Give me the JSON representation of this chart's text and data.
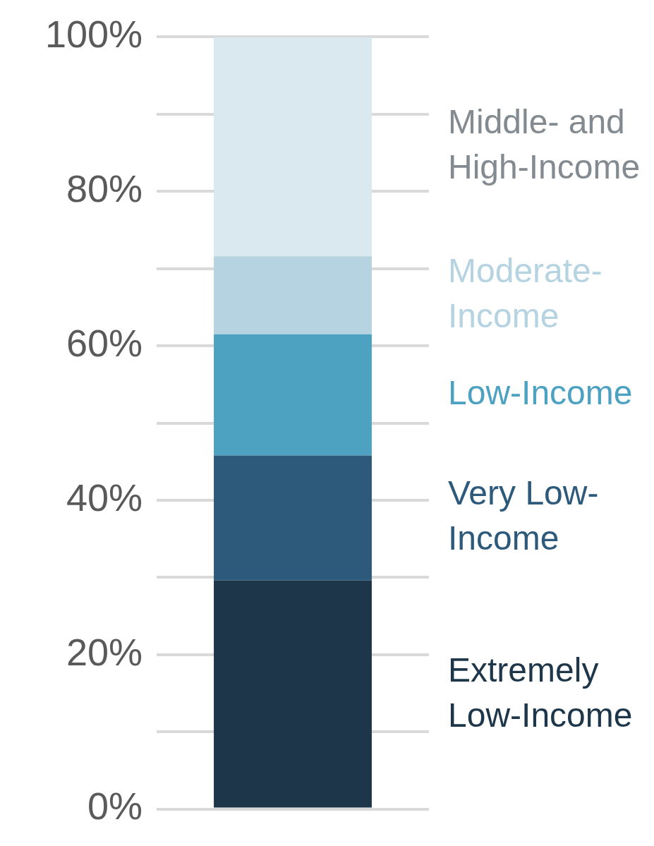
{
  "chart_data": {
    "type": "bar",
    "stacked": true,
    "categories": [
      null
    ],
    "series": [
      {
        "name": "Extremely Low-Income",
        "color": "#1d3649",
        "values": [
          29.6
        ]
      },
      {
        "name": "Very Low-Income",
        "color": "#2d5a7b",
        "values": [
          16.2
        ]
      },
      {
        "name": "Low-Income",
        "color": "#4ea2c1",
        "values": [
          15.7
        ]
      },
      {
        "name": "Moderate-Income",
        "color": "#b6d3e1",
        "values": [
          10.1
        ]
      },
      {
        "name": "Middle- and High-Income",
        "color": "#dae8f0",
        "values": [
          28.4
        ]
      }
    ],
    "ylim": [
      0,
      100
    ],
    "yticks": [
      {
        "value": 0,
        "label": "0%"
      },
      {
        "value": 10,
        "label": null
      },
      {
        "value": 20,
        "label": "20%"
      },
      {
        "value": 30,
        "label": null
      },
      {
        "value": 40,
        "label": "40%"
      },
      {
        "value": 50,
        "label": null
      },
      {
        "value": 60,
        "label": "60%"
      },
      {
        "value": 70,
        "label": null
      },
      {
        "value": 80,
        "label": "80%"
      },
      {
        "value": 90,
        "label": null
      },
      {
        "value": 100,
        "label": "100%"
      }
    ],
    "grid": "y",
    "legend": false,
    "tick_labels": "y"
  }
}
